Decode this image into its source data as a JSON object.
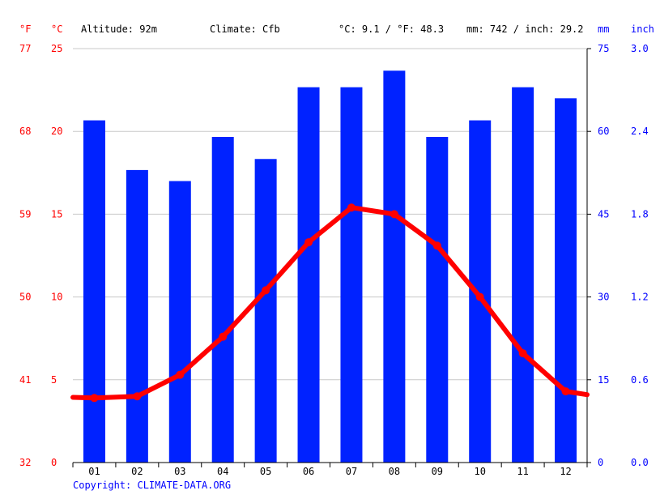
{
  "header": {
    "unit_f": "°F",
    "unit_c": "°C",
    "altitude": "Altitude: 92m",
    "climate": "Climate: Cfb",
    "temp_avg": "°C: 9.1 / °F: 48.3",
    "precip": "mm: 742 / inch: 29.2",
    "unit_mm": "mm",
    "unit_inch": "inch"
  },
  "footer": {
    "copyright": "Copyright: CLIMATE-DATA.ORG"
  },
  "colors": {
    "temperature": "#ff0000",
    "precipitation": "#0022ff",
    "grid": "#c8c8c8",
    "axis": "#000000"
  },
  "chart_data": {
    "type": "bar",
    "categories": [
      "01",
      "02",
      "03",
      "04",
      "05",
      "06",
      "07",
      "08",
      "09",
      "10",
      "11",
      "12"
    ],
    "series": [
      {
        "kind": "bar",
        "axis": "mm",
        "values": [
          62,
          53,
          51,
          59,
          55,
          68,
          68,
          71,
          59,
          62,
          68,
          66
        ]
      },
      {
        "kind": "line",
        "axis": "°C",
        "values": [
          3.9,
          4.0,
          5.3,
          7.6,
          10.4,
          13.3,
          15.4,
          15.0,
          13.1,
          10.0,
          6.6,
          4.3
        ]
      }
    ],
    "axes": {
      "f": {
        "ticks": [
          "32",
          "41",
          "50",
          "59",
          "68",
          "77"
        ]
      },
      "c": {
        "ticks": [
          "0",
          "5",
          "10",
          "15",
          "20",
          "25"
        ],
        "ylim": [
          0,
          25
        ]
      },
      "mm": {
        "ticks": [
          "0",
          "15",
          "30",
          "45",
          "60",
          "75"
        ],
        "ylim": [
          0,
          75
        ]
      },
      "inch": {
        "ticks": [
          "0.0",
          "0.6",
          "1.2",
          "1.8",
          "2.4",
          "3.0"
        ]
      }
    },
    "grid": true
  }
}
